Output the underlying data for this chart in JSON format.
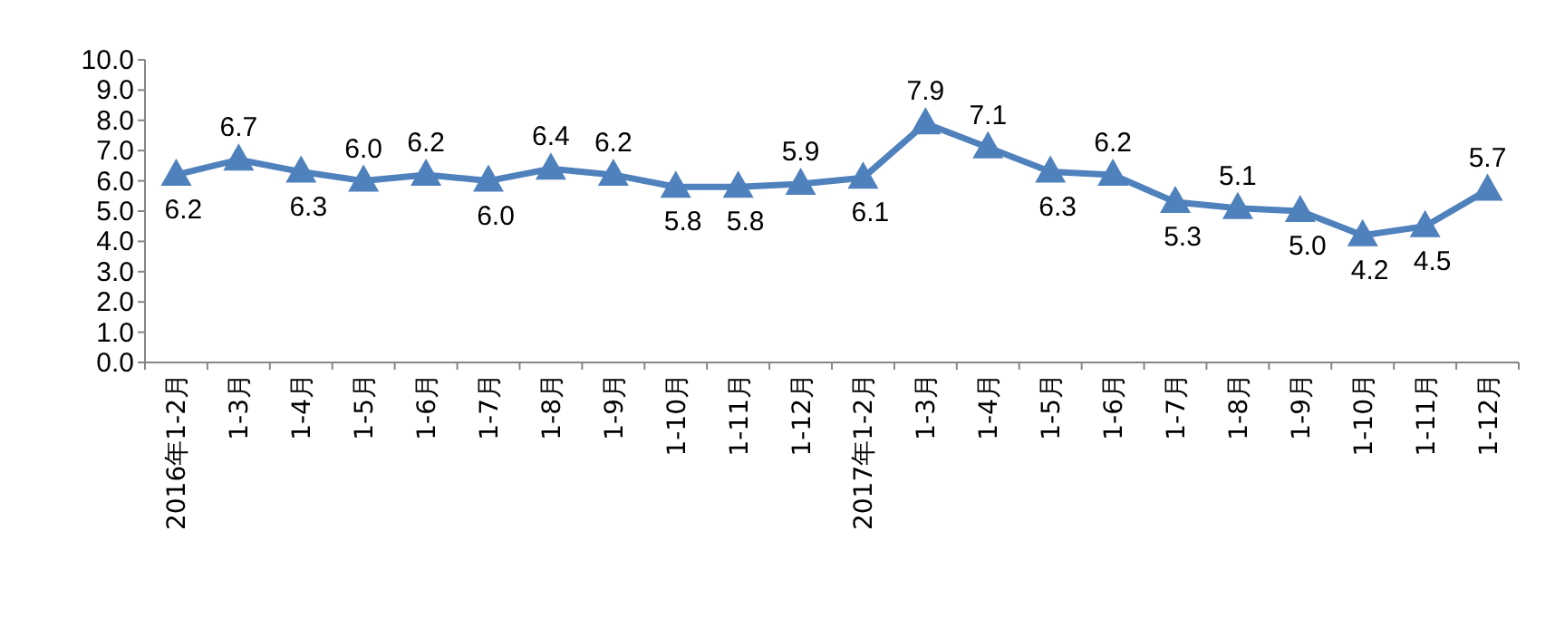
{
  "chart_data": {
    "type": "line",
    "categories": [
      "2016年1-2月",
      "1-3月",
      "1-4月",
      "1-5月",
      "1-6月",
      "1-7月",
      "1-8月",
      "1-9月",
      "1-10月",
      "1-11月",
      "1-12月",
      "2017年1-2月",
      "1-3月",
      "1-4月",
      "1-5月",
      "1-6月",
      "1-7月",
      "1-8月",
      "1-9月",
      "1-10月",
      "1-11月",
      "1-12月"
    ],
    "series": [
      {
        "color": "#4f81bd",
        "values": [
          6.2,
          6.7,
          6.3,
          6.0,
          6.2,
          6.0,
          6.4,
          6.2,
          5.8,
          5.8,
          5.9,
          6.1,
          7.9,
          7.1,
          6.3,
          6.2,
          5.3,
          5.1,
          5.0,
          4.2,
          4.5,
          5.7
        ],
        "value_labels": [
          "6.2",
          "6.7",
          "6.3",
          "6.0",
          "6.2",
          "6.0",
          "6.4",
          "6.2",
          "5.8",
          "5.8",
          "5.9",
          "6.1",
          "7.9",
          "7.1",
          "6.3",
          "6.2",
          "5.3",
          "5.1",
          "5.0",
          "4.2",
          "4.5",
          "5.7"
        ]
      }
    ],
    "ylim": [
      0,
      10
    ],
    "yticks": [
      {
        "value": 0,
        "label": "0.0"
      },
      {
        "value": 1,
        "label": "1.0"
      },
      {
        "value": 2,
        "label": "2.0"
      },
      {
        "value": 3,
        "label": "3.0"
      },
      {
        "value": 4,
        "label": "4.0"
      },
      {
        "value": 5,
        "label": "5.0"
      },
      {
        "value": 6,
        "label": "6.0"
      },
      {
        "value": 7,
        "label": "7.0"
      },
      {
        "value": 8,
        "label": "8.0"
      },
      {
        "value": 9,
        "label": "9.0"
      },
      {
        "value": 10,
        "label": "10.0"
      }
    ],
    "grid": false,
    "marker": "triangle",
    "line_style": "solid"
  }
}
